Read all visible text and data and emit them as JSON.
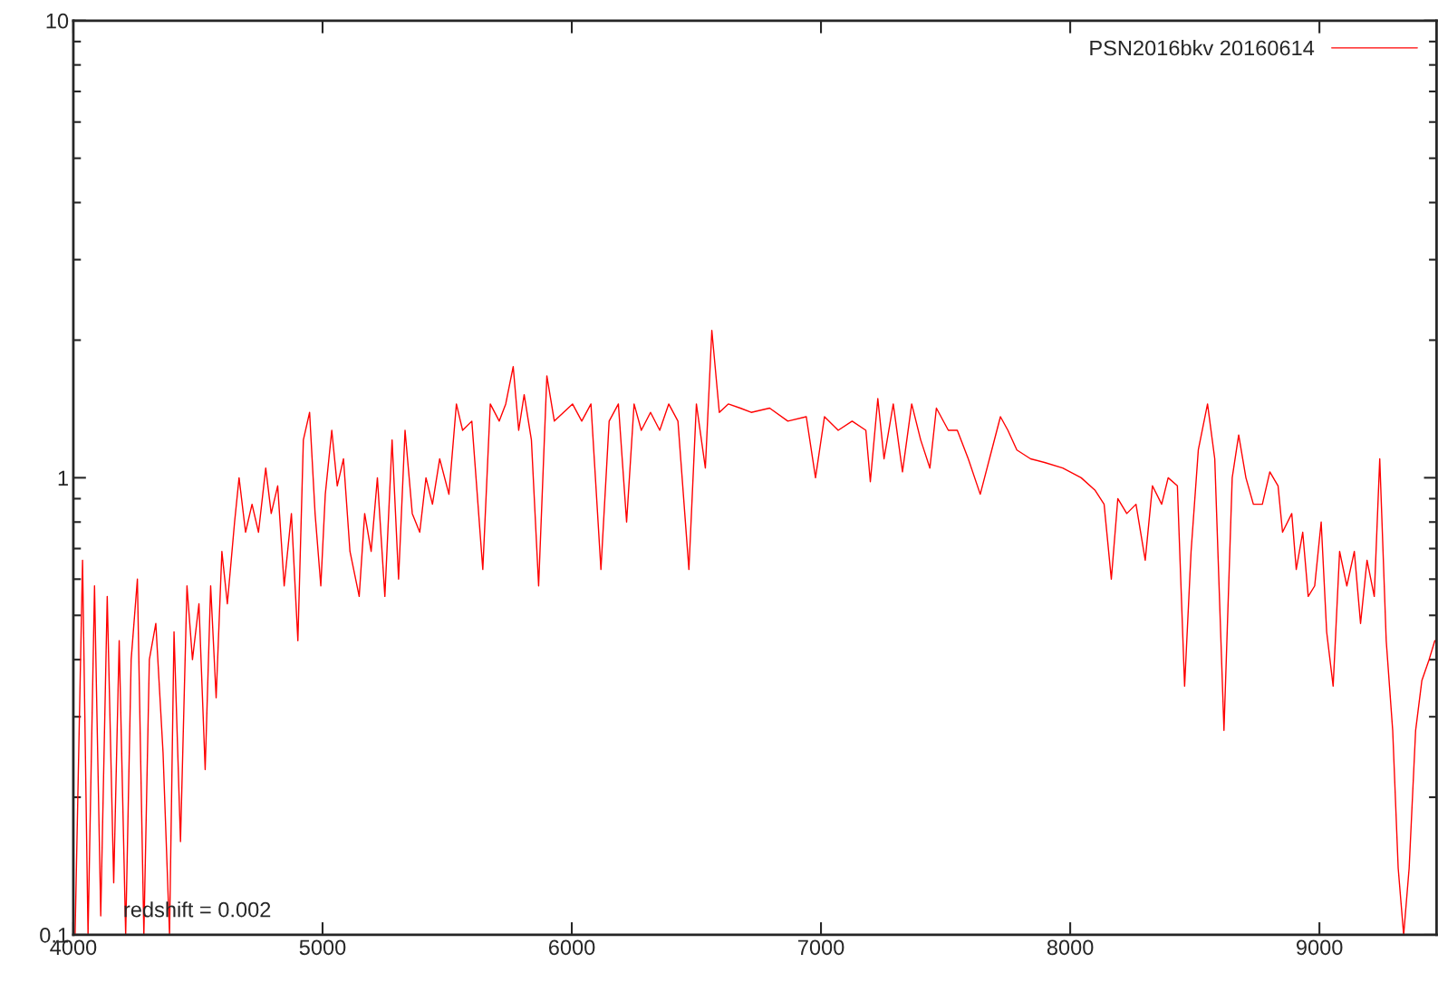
{
  "chart_data": {
    "type": "line",
    "x": [
      4007,
      4037,
      4059,
      4085,
      4110,
      4136,
      4162,
      4184,
      4210,
      4232,
      4257,
      4283,
      4305,
      4331,
      4360,
      4386,
      4404,
      4430,
      4456,
      4478,
      4504,
      4529,
      4551,
      4573,
      4596,
      4618,
      4647,
      4665,
      4691,
      4717,
      4743,
      4772,
      4794,
      4820,
      4846,
      4875,
      4901,
      4923,
      4948,
      4970,
      4993,
      5011,
      5037,
      5059,
      5084,
      5110,
      5147,
      5169,
      5195,
      5220,
      5250,
      5279,
      5305,
      5331,
      5360,
      5390,
      5415,
      5441,
      5470,
      5507,
      5537,
      5562,
      5599,
      5643,
      5673,
      5709,
      5735,
      5765,
      5787,
      5809,
      5838,
      5867,
      5900,
      5930,
      5967,
      6003,
      6040,
      6077,
      6117,
      6150,
      6187,
      6220,
      6250,
      6279,
      6316,
      6353,
      6389,
      6426,
      6470,
      6500,
      6536,
      6562,
      6592,
      6628,
      6676,
      6720,
      6794,
      6867,
      6941,
      6978,
      7014,
      7069,
      7125,
      7180,
      7198,
      7228,
      7253,
      7290,
      7327,
      7364,
      7400,
      7437,
      7463,
      7511,
      7547,
      7591,
      7639,
      7676,
      7720,
      7750,
      7786,
      7841,
      7897,
      7970,
      8044,
      8099,
      8136,
      8165,
      8191,
      8227,
      8264,
      8301,
      8330,
      8367,
      8393,
      8430,
      8459,
      8485,
      8514,
      8551,
      8580,
      8617,
      8650,
      8676,
      8705,
      8735,
      8771,
      8801,
      8834,
      8852,
      8889,
      8907,
      8933,
      8955,
      8981,
      9007,
      9029,
      9055,
      9081,
      9110,
      9140,
      9165,
      9191,
      9220,
      9242,
      9268,
      9294,
      9316,
      9338,
      9360,
      9386,
      9411,
      9440,
      9463
    ],
    "series": [
      {
        "name": "PSN2016bkv 20160614",
        "color": "#ff0000",
        "values": [
          0.1,
          0.66,
          0.1,
          0.58,
          0.11,
          0.55,
          0.13,
          0.44,
          0.1,
          0.4,
          0.6,
          0.1,
          0.4,
          0.48,
          0.25,
          0.1,
          0.46,
          0.16,
          0.58,
          0.4,
          0.53,
          0.23,
          0.58,
          0.33,
          0.69,
          0.53,
          0.8,
          1.0,
          0.76,
          0.875,
          0.76,
          1.05,
          0.835,
          0.96,
          0.58,
          0.835,
          0.44,
          1.21,
          1.39,
          0.835,
          0.58,
          0.92,
          1.27,
          0.96,
          1.1,
          0.69,
          0.55,
          0.835,
          0.69,
          1.0,
          0.55,
          1.21,
          0.6,
          1.27,
          0.835,
          0.76,
          1.0,
          0.875,
          1.1,
          0.92,
          1.45,
          1.27,
          1.33,
          0.63,
          1.45,
          1.33,
          1.45,
          1.75,
          1.27,
          1.52,
          1.21,
          0.58,
          1.67,
          1.33,
          1.39,
          1.45,
          1.33,
          1.45,
          0.63,
          1.33,
          1.45,
          0.8,
          1.45,
          1.27,
          1.39,
          1.27,
          1.45,
          1.33,
          0.63,
          1.45,
          1.05,
          2.1,
          1.39,
          1.45,
          1.42,
          1.39,
          1.42,
          1.33,
          1.36,
          1.0,
          1.36,
          1.27,
          1.33,
          1.27,
          0.98,
          1.49,
          1.1,
          1.45,
          1.03,
          1.45,
          1.21,
          1.05,
          1.42,
          1.27,
          1.27,
          1.1,
          0.92,
          1.1,
          1.36,
          1.27,
          1.15,
          1.1,
          1.08,
          1.05,
          1.0,
          0.94,
          0.875,
          0.6,
          0.9,
          0.835,
          0.875,
          0.66,
          0.96,
          0.875,
          1.0,
          0.96,
          0.35,
          0.69,
          1.15,
          1.45,
          1.1,
          0.28,
          1.0,
          1.24,
          1.0,
          0.875,
          0.875,
          1.03,
          0.96,
          0.76,
          0.835,
          0.63,
          0.76,
          0.55,
          0.58,
          0.8,
          0.46,
          0.35,
          0.69,
          0.58,
          0.69,
          0.48,
          0.66,
          0.55,
          1.1,
          0.44,
          0.28,
          0.14,
          0.1,
          0.14,
          0.28,
          0.36,
          0.4,
          0.44
        ]
      }
    ],
    "log": "y",
    "xlim": [
      4000,
      9470
    ],
    "xticks": [
      4000,
      5000,
      6000,
      7000,
      8000,
      9000
    ],
    "ylim": [
      0.1,
      10
    ],
    "yticks": [
      0.1,
      1,
      10
    ],
    "legend": "top right",
    "grid": false,
    "annotations": [
      {
        "text": "redshift = 0.002",
        "x": 4200,
        "y": 0.107
      }
    ]
  }
}
